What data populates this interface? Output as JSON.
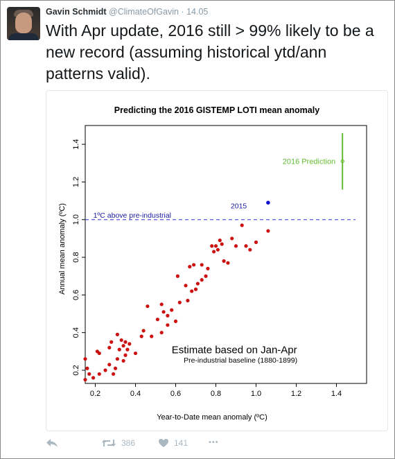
{
  "tweet": {
    "name": "Gavin Schmidt",
    "handle": "@ClimateOfGavin",
    "separator": "·",
    "time": "14.05",
    "text": "With Apr update, 2016 still > 99% likely to be a new record (assuming historical ytd/ann patterns valid)."
  },
  "actions": {
    "retweets": "386",
    "likes": "141",
    "more": "•••"
  },
  "colors": {
    "points": "#cc1111",
    "highlight": "#1010cc",
    "prediction": "#66bb33",
    "reference_line": "#5555dd"
  },
  "chart_data": {
    "type": "scatter",
    "title": "Predicting the 2016 GISTEMP LOTI mean anomaly",
    "xlabel": "Year-to-Date mean anomaly (ºC)",
    "ylabel": "Annual mean anomaly (ºC)",
    "xlim": [
      0.15,
      1.55
    ],
    "ylim": [
      0.13,
      1.5
    ],
    "xticks": [
      "0.2",
      "0.4",
      "0.6",
      "0.8",
      "1.0",
      "1.2",
      "1.4"
    ],
    "yticks": [
      "0.2",
      "0.4",
      "0.6",
      "0.8",
      "1.0",
      "1.2",
      "1.4"
    ],
    "annotation_main": "Estimate based on Jan-Apr",
    "annotation_sub": "Pre-industrial baseline (1880-1899)",
    "reference_line": {
      "y": 1.0,
      "label": "1ºC above pre-industrial"
    },
    "highlight": {
      "x": 1.06,
      "y": 1.09,
      "label": "2015"
    },
    "prediction": {
      "x": 1.43,
      "y": 1.31,
      "low": 1.16,
      "high": 1.46,
      "label": "2016 Prediction"
    },
    "points": [
      [
        0.15,
        0.26
      ],
      [
        0.16,
        0.21
      ],
      [
        0.17,
        0.18
      ],
      [
        0.19,
        0.16
      ],
      [
        0.15,
        0.15
      ],
      [
        0.22,
        0.18
      ],
      [
        0.21,
        0.3
      ],
      [
        0.22,
        0.29
      ],
      [
        0.25,
        0.2
      ],
      [
        0.27,
        0.23
      ],
      [
        0.27,
        0.32
      ],
      [
        0.28,
        0.35
      ],
      [
        0.29,
        0.18
      ],
      [
        0.3,
        0.21
      ],
      [
        0.31,
        0.39
      ],
      [
        0.31,
        0.26
      ],
      [
        0.32,
        0.31
      ],
      [
        0.33,
        0.36
      ],
      [
        0.34,
        0.33
      ],
      [
        0.34,
        0.25
      ],
      [
        0.35,
        0.28
      ],
      [
        0.35,
        0.35
      ],
      [
        0.36,
        0.31
      ],
      [
        0.37,
        0.34
      ],
      [
        0.4,
        0.29
      ],
      [
        0.43,
        0.38
      ],
      [
        0.44,
        0.41
      ],
      [
        0.46,
        0.54
      ],
      [
        0.48,
        0.38
      ],
      [
        0.51,
        0.47
      ],
      [
        0.53,
        0.4
      ],
      [
        0.53,
        0.55
      ],
      [
        0.54,
        0.51
      ],
      [
        0.56,
        0.49
      ],
      [
        0.56,
        0.44
      ],
      [
        0.58,
        0.52
      ],
      [
        0.6,
        0.46
      ],
      [
        0.61,
        0.7
      ],
      [
        0.62,
        0.56
      ],
      [
        0.65,
        0.65
      ],
      [
        0.66,
        0.57
      ],
      [
        0.67,
        0.75
      ],
      [
        0.68,
        0.62
      ],
      [
        0.69,
        0.76
      ],
      [
        0.7,
        0.63
      ],
      [
        0.71,
        0.66
      ],
      [
        0.73,
        0.68
      ],
      [
        0.73,
        0.76
      ],
      [
        0.75,
        0.7
      ],
      [
        0.76,
        0.74
      ],
      [
        0.78,
        0.86
      ],
      [
        0.79,
        0.83
      ],
      [
        0.8,
        0.86
      ],
      [
        0.81,
        0.84
      ],
      [
        0.82,
        0.89
      ],
      [
        0.83,
        0.87
      ],
      [
        0.84,
        0.78
      ],
      [
        0.86,
        0.77
      ],
      [
        0.88,
        0.9
      ],
      [
        0.9,
        0.86
      ],
      [
        0.93,
        0.97
      ],
      [
        0.95,
        0.86
      ],
      [
        0.97,
        0.84
      ],
      [
        1.0,
        0.88
      ],
      [
        1.06,
        0.94
      ]
    ]
  }
}
